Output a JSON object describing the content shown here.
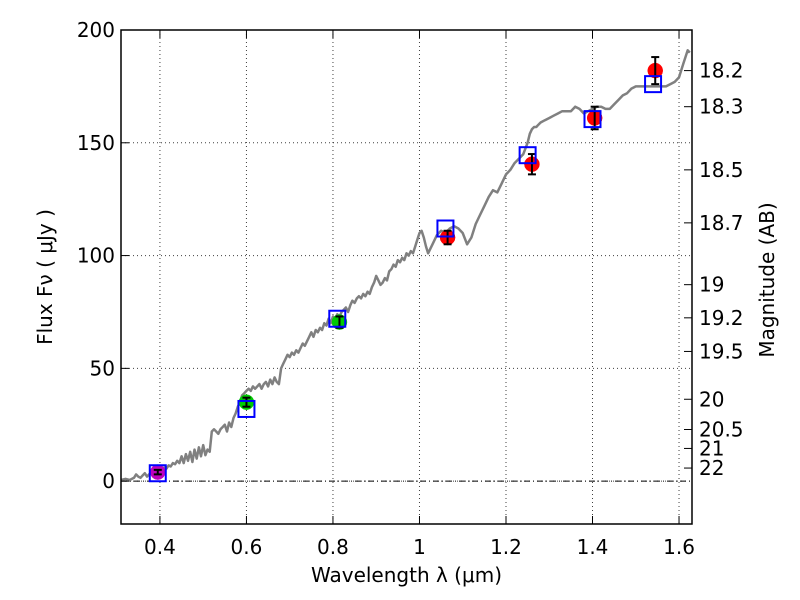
{
  "chart_data": {
    "type": "scatter",
    "title": "",
    "xlabel": "Wavelength  λ (μm)",
    "ylabel": "Flux  Fν  ( μJy )",
    "ylabel_right": "Magnitude (AB)",
    "xlim": [
      0.31,
      1.63
    ],
    "ylim": [
      -19,
      200
    ],
    "grid": true,
    "x_ticks": [
      0.4,
      0.6,
      0.8,
      1.0,
      1.2,
      1.4,
      1.6
    ],
    "x_tick_labels": [
      "0.4",
      "0.6",
      "0.8",
      "1",
      "1.2",
      "1.4",
      "1.6"
    ],
    "y_ticks": [
      0,
      50,
      100,
      150,
      200
    ],
    "y_tick_labels": [
      "0",
      "50",
      "100",
      "150",
      "200"
    ],
    "right_ticks": [
      {
        "flux": 182.0,
        "label": "18.2"
      },
      {
        "flux": 166.0,
        "label": "18.3"
      },
      {
        "flux": 138.0,
        "label": "18.5"
      },
      {
        "flux": 114.5,
        "label": "18.7"
      },
      {
        "flux": 87.1,
        "label": "19"
      },
      {
        "flux": 72.4,
        "label": "19.2"
      },
      {
        "flux": 57.5,
        "label": "19.5"
      },
      {
        "flux": 36.3,
        "label": "20"
      },
      {
        "flux": 22.9,
        "label": "20.5"
      },
      {
        "flux": 14.5,
        "label": "21"
      },
      {
        "flux": 5.8,
        "label": "22"
      }
    ],
    "zero_line": 0,
    "model_spectrum": {
      "name": "model",
      "color": "#808080",
      "x": [
        0.31,
        0.32,
        0.33,
        0.34,
        0.345,
        0.35,
        0.355,
        0.36,
        0.365,
        0.37,
        0.375,
        0.38,
        0.385,
        0.39,
        0.395,
        0.4,
        0.405,
        0.41,
        0.415,
        0.42,
        0.425,
        0.43,
        0.435,
        0.44,
        0.445,
        0.45,
        0.455,
        0.46,
        0.465,
        0.47,
        0.475,
        0.48,
        0.485,
        0.49,
        0.495,
        0.5,
        0.505,
        0.51,
        0.515,
        0.52,
        0.525,
        0.53,
        0.535,
        0.54,
        0.545,
        0.55,
        0.555,
        0.56,
        0.565,
        0.57,
        0.575,
        0.58,
        0.585,
        0.59,
        0.595,
        0.6,
        0.605,
        0.61,
        0.615,
        0.62,
        0.625,
        0.63,
        0.635,
        0.64,
        0.645,
        0.65,
        0.655,
        0.66,
        0.665,
        0.67,
        0.675,
        0.68,
        0.685,
        0.69,
        0.695,
        0.7,
        0.705,
        0.71,
        0.715,
        0.72,
        0.725,
        0.73,
        0.735,
        0.74,
        0.745,
        0.75,
        0.755,
        0.76,
        0.765,
        0.77,
        0.775,
        0.78,
        0.785,
        0.79,
        0.795,
        0.8,
        0.805,
        0.81,
        0.815,
        0.82,
        0.825,
        0.83,
        0.835,
        0.84,
        0.845,
        0.85,
        0.855,
        0.86,
        0.865,
        0.87,
        0.875,
        0.88,
        0.885,
        0.89,
        0.895,
        0.9,
        0.905,
        0.91,
        0.915,
        0.92,
        0.925,
        0.93,
        0.935,
        0.94,
        0.945,
        0.95,
        0.955,
        0.96,
        0.965,
        0.97,
        0.975,
        0.98,
        0.985,
        0.99,
        0.995,
        1.0,
        1.005,
        1.01,
        1.015,
        1.02,
        1.025,
        1.03,
        1.04,
        1.05,
        1.06,
        1.07,
        1.08,
        1.09,
        1.1,
        1.11,
        1.12,
        1.13,
        1.14,
        1.15,
        1.16,
        1.17,
        1.18,
        1.19,
        1.2,
        1.21,
        1.22,
        1.23,
        1.24,
        1.25,
        1.255,
        1.26,
        1.265,
        1.27,
        1.275,
        1.28,
        1.29,
        1.3,
        1.31,
        1.32,
        1.33,
        1.34,
        1.35,
        1.36,
        1.37,
        1.38,
        1.39,
        1.4,
        1.41,
        1.42,
        1.43,
        1.44,
        1.45,
        1.46,
        1.47,
        1.48,
        1.49,
        1.5,
        1.51,
        1.52,
        1.53,
        1.54,
        1.55,
        1.56,
        1.57,
        1.58,
        1.59,
        1.6,
        1.61,
        1.62,
        1.625
      ],
      "y": [
        0.5,
        1.0,
        0.5,
        1.5,
        3.0,
        2.0,
        1.5,
        2.5,
        3.5,
        2.0,
        3.0,
        4.0,
        2.5,
        4.5,
        3.5,
        5.0,
        4.5,
        6.0,
        5.5,
        7.0,
        6.5,
        8.0,
        7.5,
        9.0,
        8.0,
        11.0,
        8.0,
        12.0,
        9.0,
        13.0,
        8.5,
        14.0,
        10.0,
        15.0,
        11.0,
        16.0,
        11.5,
        14.0,
        13.0,
        22.0,
        23.0,
        22.0,
        21.0,
        23.0,
        24.0,
        25.0,
        22.0,
        26.0,
        24.0,
        28.0,
        30.0,
        33.0,
        35.0,
        38.0,
        39.0,
        40.0,
        41.0,
        40.0,
        42.0,
        41.0,
        42.0,
        43.0,
        41.0,
        43.0,
        44.0,
        42.0,
        45.0,
        43.0,
        46.0,
        44.0,
        43.0,
        50.0,
        52.0,
        54.0,
        56.0,
        55.0,
        57.0,
        56.0,
        58.0,
        57.0,
        59.0,
        61.0,
        60.0,
        62.0,
        64.0,
        66.0,
        64.0,
        67.0,
        66.0,
        68.0,
        67.0,
        70.0,
        69.0,
        72.0,
        70.0,
        73.0,
        72.0,
        74.0,
        73.0,
        75.0,
        76.0,
        77.0,
        75.0,
        78.0,
        80.0,
        79.0,
        81.0,
        82.0,
        81.0,
        83.0,
        82.0,
        84.0,
        83.0,
        86.0,
        88.0,
        91.0,
        89.0,
        87.0,
        88.0,
        90.0,
        89.0,
        93.0,
        94.0,
        96.0,
        95.0,
        98.0,
        97.0,
        99.0,
        98.0,
        101.0,
        100.0,
        102.0,
        101.0,
        104.0,
        107.0,
        110.0,
        111.0,
        108.0,
        104.0,
        101.0,
        103.0,
        105.0,
        109.0,
        111.0,
        110.0,
        112.0,
        113.0,
        112.0,
        110.0,
        105.0,
        108.0,
        114.0,
        118.0,
        122.0,
        126.0,
        129.0,
        128.0,
        132.0,
        136.0,
        138.0,
        141.0,
        143.0,
        145.0,
        150.0,
        154.0,
        156.0,
        157.0,
        157.0,
        158.0,
        159.0,
        160.0,
        161.0,
        162.0,
        163.0,
        164.0,
        164.0,
        164.0,
        166.0,
        165.0,
        163.0,
        164.0,
        165.0,
        166.0,
        166.0,
        165.0,
        165.0,
        167.0,
        169.0,
        171.0,
        172.0,
        174.0,
        175.0,
        175.0,
        175.0,
        175.0,
        175.0,
        175.0,
        175.0,
        175.0,
        176.0,
        177.0,
        179.0,
        185.0,
        191.0,
        190.0
      ]
    },
    "series": [
      {
        "name": "purple-point",
        "color": "#bf00bf",
        "marker": "circle",
        "x": [
          0.395
        ],
        "y": [
          4.0
        ],
        "yerr": [
          1.0
        ]
      },
      {
        "name": "green-points",
        "color": "#00cc00",
        "marker": "circle",
        "x": [
          0.6,
          0.815
        ],
        "y": [
          35.0,
          70.5
        ],
        "yerr": [
          2.0,
          2.5
        ]
      },
      {
        "name": "red-points",
        "color": "#ff0000",
        "marker": "circle",
        "x": [
          1.065,
          1.26,
          1.405,
          1.545
        ],
        "y": [
          108.0,
          140.5,
          161.0,
          182.0
        ],
        "yerr": [
          3.0,
          4.5,
          5.0,
          6.0
        ]
      },
      {
        "name": "model-bandpass-fluxes",
        "color": "#0000ff",
        "marker": "square",
        "x": [
          0.395,
          0.6,
          0.81,
          1.06,
          1.25,
          1.4,
          1.54
        ],
        "y": [
          3.5,
          32.0,
          72.0,
          112.0,
          144.5,
          160.5,
          176.0
        ]
      }
    ]
  }
}
